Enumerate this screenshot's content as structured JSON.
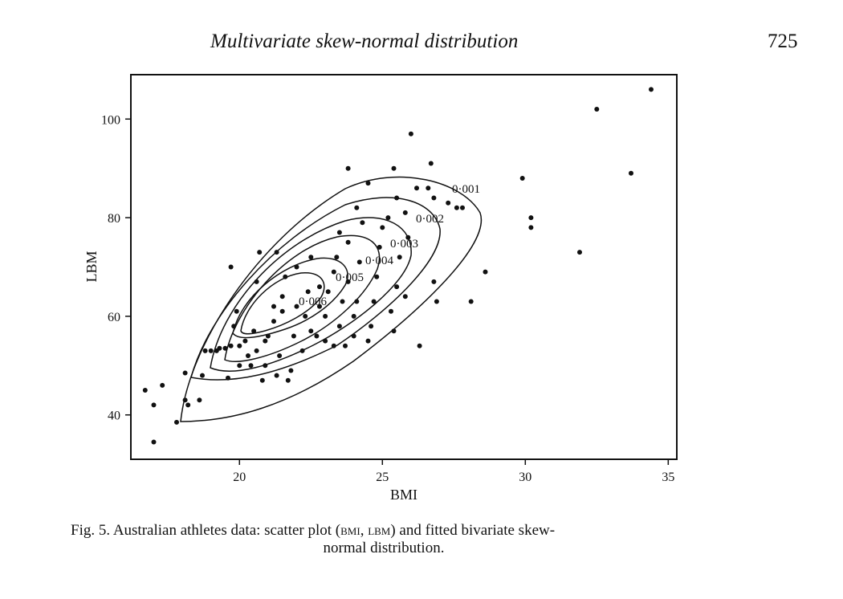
{
  "header": {
    "title": "Multivariate skew-normal distribution",
    "page_number": "725"
  },
  "caption": {
    "prefix": "Fig. 5.",
    "text_a": "Australian athletes data: scatter plot (",
    "bmi": "bmi",
    "sep": ", ",
    "lbm": "lbm",
    "text_b": ") and fitted bivariate skew-",
    "text_c": "normal distribution."
  },
  "chart_data": {
    "type": "scatter",
    "xlabel": "BMI",
    "ylabel": "LBM",
    "xlim": [
      16.2,
      35.3
    ],
    "ylim": [
      31,
      109
    ],
    "x_ticks": [
      20,
      25,
      30,
      35
    ],
    "y_ticks": [
      40,
      60,
      80,
      100
    ],
    "grid": false,
    "contour_levels": [
      "0·001",
      "0·002",
      "0·003",
      "0·004",
      "0·005",
      "0·006"
    ],
    "points": [
      [
        16.7,
        45
      ],
      [
        17.0,
        42
      ],
      [
        17.0,
        34.5
      ],
      [
        17.3,
        46
      ],
      [
        17.8,
        38.5
      ],
      [
        18.1,
        43
      ],
      [
        18.2,
        42
      ],
      [
        18.1,
        48.5
      ],
      [
        18.6,
        43
      ],
      [
        18.7,
        48
      ],
      [
        18.8,
        53
      ],
      [
        19.0,
        53
      ],
      [
        19.2,
        53
      ],
      [
        19.3,
        53.5
      ],
      [
        19.5,
        53.5
      ],
      [
        19.7,
        54
      ],
      [
        19.6,
        47.5
      ],
      [
        19.7,
        70
      ],
      [
        19.8,
        58
      ],
      [
        19.9,
        61
      ],
      [
        20.0,
        50
      ],
      [
        20.0,
        54
      ],
      [
        20.2,
        55
      ],
      [
        20.4,
        50
      ],
      [
        20.3,
        52
      ],
      [
        20.5,
        57
      ],
      [
        20.6,
        53
      ],
      [
        20.6,
        67
      ],
      [
        20.8,
        47
      ],
      [
        20.9,
        50
      ],
      [
        20.9,
        55
      ],
      [
        21.0,
        56
      ],
      [
        21.2,
        59
      ],
      [
        21.3,
        48
      ],
      [
        21.2,
        62
      ],
      [
        20.7,
        73
      ],
      [
        21.3,
        73
      ],
      [
        21.4,
        52
      ],
      [
        21.5,
        61
      ],
      [
        21.5,
        64
      ],
      [
        21.6,
        68
      ],
      [
        21.7,
        47
      ],
      [
        21.8,
        49
      ],
      [
        21.9,
        56
      ],
      [
        22.0,
        62
      ],
      [
        22.0,
        70
      ],
      [
        22.2,
        53
      ],
      [
        22.3,
        60
      ],
      [
        22.4,
        65
      ],
      [
        22.5,
        57
      ],
      [
        22.5,
        72
      ],
      [
        22.7,
        56
      ],
      [
        22.8,
        62
      ],
      [
        22.8,
        66
      ],
      [
        23.0,
        55
      ],
      [
        23.0,
        60
      ],
      [
        23.1,
        65
      ],
      [
        23.3,
        54
      ],
      [
        23.3,
        69
      ],
      [
        23.4,
        72
      ],
      [
        23.5,
        58
      ],
      [
        23.5,
        77
      ],
      [
        23.6,
        63
      ],
      [
        23.7,
        54
      ],
      [
        23.8,
        67
      ],
      [
        23.8,
        75
      ],
      [
        24.0,
        56
      ],
      [
        24.0,
        60
      ],
      [
        24.1,
        63
      ],
      [
        24.2,
        71
      ],
      [
        24.3,
        79
      ],
      [
        24.5,
        55
      ],
      [
        24.6,
        58
      ],
      [
        24.7,
        63
      ],
      [
        24.8,
        68
      ],
      [
        24.9,
        74
      ],
      [
        25.0,
        78
      ],
      [
        25.2,
        80
      ],
      [
        25.3,
        61
      ],
      [
        25.4,
        57
      ],
      [
        25.5,
        66
      ],
      [
        25.6,
        72
      ],
      [
        25.8,
        64
      ],
      [
        25.9,
        76
      ],
      [
        23.8,
        90
      ],
      [
        24.1,
        82
      ],
      [
        24.5,
        87
      ],
      [
        25.4,
        90
      ],
      [
        25.8,
        81
      ],
      [
        25.5,
        84
      ],
      [
        26.0,
        97
      ],
      [
        26.2,
        86
      ],
      [
        26.3,
        54
      ],
      [
        26.7,
        91
      ],
      [
        26.6,
        86
      ],
      [
        26.8,
        84
      ],
      [
        26.9,
        63
      ],
      [
        26.8,
        67
      ],
      [
        27.3,
        83
      ],
      [
        27.6,
        82
      ],
      [
        27.8,
        82
      ],
      [
        28.1,
        63
      ],
      [
        28.6,
        69
      ],
      [
        29.9,
        88
      ],
      [
        30.2,
        80
      ],
      [
        30.2,
        78
      ],
      [
        31.9,
        73
      ],
      [
        32.5,
        102
      ],
      [
        33.7,
        89
      ],
      [
        34.4,
        106
      ]
    ]
  }
}
